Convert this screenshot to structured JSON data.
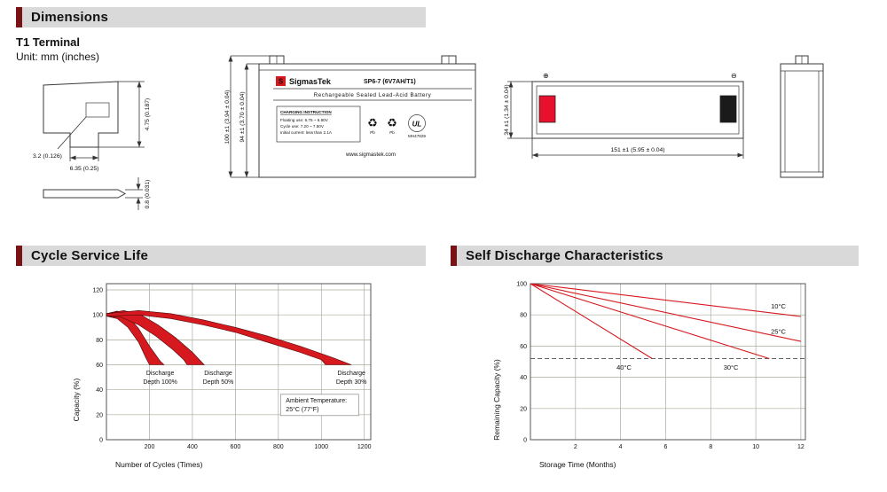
{
  "colors": {
    "header_bg": "#d9d9d9",
    "accent_red": "#7a1315",
    "chart_red": "#d6181f",
    "terminal_red": "#e8112d",
    "terminal_black": "#1a1a1a"
  },
  "page": {
    "sections": {
      "dimensions": {
        "title": "Dimensions",
        "subtitle": "T1 Terminal",
        "unit": "Unit: mm (inches)"
      },
      "cycle_service_life": {
        "title": "Cycle Service Life"
      },
      "self_discharge": {
        "title": "Self Discharge Characteristics"
      }
    }
  },
  "drawings": {
    "terminal_detail": {
      "dim_height": "4.75 (0.187)",
      "dim_tab": "3.2 (0.126)",
      "dim_width": "6.35 (0.25)",
      "dim_thickness": "0.8 (0.031)"
    },
    "front_view": {
      "dim_total_height": "100 ±1 (3.94 ± 0.04)",
      "dim_body_height": "94 ±1 (3.70 ± 0.04)",
      "label": {
        "logo_letter": "S",
        "brand": "SigmasTek",
        "model": "SP6-7 (6V7AH/T1)",
        "subtitle": "Rechargeable Sealed Lead-Acid Battery",
        "charging_title": "CHARGING INSTRUCTION",
        "charging_lines": [
          "Floating use: 6.75 ~ 6.90V",
          "Cycle use: 7.20 ~ 7.50V",
          "Initial current: less than 2.1A"
        ],
        "recycle_symbol": "♻",
        "pb": "Pb",
        "ul_mark": "UL",
        "ul_code": "MH47829",
        "website": "www.sigmastek.com"
      }
    },
    "top_view": {
      "dim_width": "34 ±1 (1.34 ± 0.04)",
      "dim_length": "151 ±1 (5.95 ± 0.04)",
      "positive_symbol": "⊕",
      "negative_symbol": "⊖"
    }
  },
  "chart_data": [
    {
      "id": "cycle_service_life",
      "type": "area",
      "title": "Cycle Service Life",
      "xlabel": "Number of Cycles (Times)",
      "ylabel": "Capacity (%)",
      "xlim": [
        0,
        1230
      ],
      "ylim": [
        0,
        125
      ],
      "xticks": [
        200,
        400,
        600,
        800,
        1000,
        1200
      ],
      "yticks": [
        0,
        20,
        40,
        60,
        80,
        100,
        120
      ],
      "grid": true,
      "bands": [
        {
          "name": "Discharge Depth 100%",
          "upper": [
            [
              0,
              101
            ],
            [
              50,
              103
            ],
            [
              100,
              99
            ],
            [
              150,
              89
            ],
            [
              200,
              75
            ],
            [
              250,
              63
            ],
            [
              268,
              60
            ]
          ],
          "lower": [
            [
              0,
              99
            ],
            [
              50,
              97
            ],
            [
              100,
              90
            ],
            [
              150,
              78
            ],
            [
              185,
              65
            ],
            [
              200,
              60
            ]
          ]
        },
        {
          "name": "Discharge Depth 50%",
          "upper": [
            [
              0,
              101
            ],
            [
              80,
              103.5
            ],
            [
              160,
              100
            ],
            [
              240,
              92
            ],
            [
              320,
              82
            ],
            [
              400,
              70
            ],
            [
              455,
              60
            ]
          ],
          "lower": [
            [
              0,
              99
            ],
            [
              70,
              98
            ],
            [
              150,
              92
            ],
            [
              230,
              83
            ],
            [
              310,
              72
            ],
            [
              360,
              64
            ],
            [
              375,
              60
            ]
          ]
        },
        {
          "name": "Discharge Depth 30%",
          "upper": [
            [
              0,
              101
            ],
            [
              150,
              103.5
            ],
            [
              300,
              101
            ],
            [
              450,
              96
            ],
            [
              600,
              90
            ],
            [
              750,
              83
            ],
            [
              900,
              75
            ],
            [
              1050,
              66
            ],
            [
              1140,
              60
            ]
          ],
          "lower": [
            [
              0,
              99
            ],
            [
              150,
              100
            ],
            [
              300,
              97
            ],
            [
              450,
              92
            ],
            [
              600,
              86
            ],
            [
              750,
              78
            ],
            [
              900,
              70
            ],
            [
              1000,
              64
            ],
            [
              1020,
              60
            ]
          ]
        }
      ],
      "annotations": [
        {
          "text": [
            "Discharge",
            "Depth 100%"
          ],
          "x": 250,
          "y": 52
        },
        {
          "text": [
            "Discharge",
            "Depth 50%"
          ],
          "x": 520,
          "y": 52
        },
        {
          "text": [
            "Discharge",
            "Depth 30%"
          ],
          "x": 1140,
          "y": 52
        },
        {
          "text": [
            "Ambient Temperature:",
            "25°C (77°F)"
          ],
          "x": 835,
          "y": 30,
          "box": true
        }
      ]
    },
    {
      "id": "self_discharge",
      "type": "line",
      "title": "Self Discharge Characteristics",
      "xlabel": "Storage Time (Months)",
      "ylabel": "Remaining Capacity (%)",
      "xlim": [
        0,
        12.2
      ],
      "ylim": [
        0,
        100
      ],
      "xticks": [
        2,
        4,
        6,
        8,
        10,
        12
      ],
      "yticks": [
        0,
        20,
        40,
        60,
        80,
        100
      ],
      "grid": true,
      "series": [
        {
          "name": "10°C",
          "points": [
            [
              0,
              100
            ],
            [
              12,
              79
            ]
          ],
          "label_x": 11.0,
          "label_y": 84
        },
        {
          "name": "25°C",
          "points": [
            [
              0,
              100
            ],
            [
              12,
              63
            ]
          ],
          "label_x": 11.0,
          "label_y": 68
        },
        {
          "name": "30°C",
          "points": [
            [
              0,
              100
            ],
            [
              10.6,
              52
            ]
          ],
          "label_x": 8.9,
          "label_y": 45
        },
        {
          "name": "40°C",
          "points": [
            [
              0,
              100
            ],
            [
              5.4,
              52
            ]
          ],
          "label_x": 4.15,
          "label_y": 45
        }
      ],
      "ref_line": {
        "y": 52,
        "style": "dashed"
      }
    }
  ]
}
